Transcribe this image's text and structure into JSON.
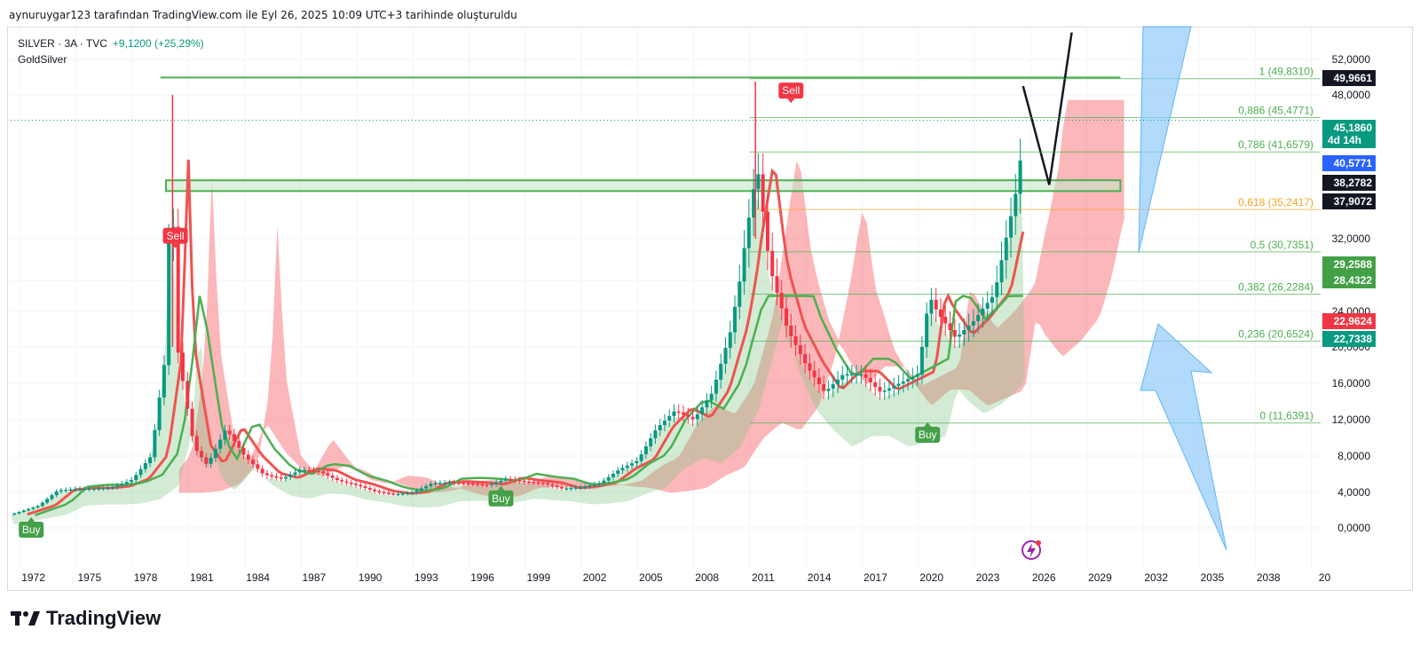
{
  "header": {
    "caption": "aynuruygar123 tarafından TradingView.com ile Eyl 26, 2025 10:09 UTC+3 tarihinde oluşturuldu",
    "symbol_line": "SILVER · 3A · TVC",
    "change": "+9,1200 (+25,29%)",
    "indicator": "GoldSilver"
  },
  "brand": {
    "name": "TradingView"
  },
  "colors": {
    "up": "#089981",
    "down": "#f23645",
    "green_line": "#4caf50",
    "red_line": "#ef5350",
    "fib": "#4caf50",
    "fib_618": "#f5a623",
    "projection": "#90caf9",
    "cloud_red": "#f77c80",
    "cloud_green": "#81c784"
  },
  "chart_data": {
    "type": "candlestick",
    "timeframe": "3A",
    "x_axis": {
      "ticks": [
        "1972",
        "1975",
        "1978",
        "1981",
        "1984",
        "1987",
        "1990",
        "1993",
        "1996",
        "1999",
        "2002",
        "2005",
        "2008",
        "2011",
        "2014",
        "2017",
        "2020",
        "2023",
        "2026",
        "2029",
        "2032",
        "2035",
        "2038",
        "20"
      ],
      "range": [
        1971.5,
        2041.5
      ]
    },
    "y_axis": {
      "ticks": [
        "0,0000",
        "4,0000",
        "8,0000",
        "12,0000",
        "16,0000",
        "20,0000",
        "24,0000",
        "28,0000",
        "32,0000",
        "48,0000",
        "52,0000"
      ],
      "range": [
        -3,
        55
      ],
      "scale": "log-like"
    },
    "price_tags": [
      {
        "label": "49,9661",
        "value": 49.9661,
        "color": "#131722"
      },
      {
        "label": "45,1860",
        "sub": "4d 14h",
        "value": 45.186,
        "color": "#089981"
      },
      {
        "label": "40,5771",
        "value": 40.5771,
        "color": "#2962ff"
      },
      {
        "label": "38,2782",
        "value": 38.2782,
        "color": "#131722"
      },
      {
        "label": "37,9072",
        "value": 37.9072,
        "color": "#131722"
      },
      {
        "label": "29,2588",
        "value": 29.2588,
        "color": "#43a047"
      },
      {
        "label": "28,4322",
        "value": 28.4322,
        "color": "#43a047"
      },
      {
        "label": "22,9624",
        "value": 22.9624,
        "color": "#f23645"
      },
      {
        "label": "22,7338",
        "value": 22.7338,
        "color": "#089981"
      }
    ],
    "fibonacci": [
      {
        "label": "1 (49,8310)",
        "value": 49.831
      },
      {
        "label": "0,886 (45,4771)",
        "value": 45.4771
      },
      {
        "label": "0,786 (41,6579)",
        "value": 41.6579
      },
      {
        "label": "0,618 (35,2417)",
        "value": 35.2417
      },
      {
        "label": "0,5 (30,7351)",
        "value": 30.7351
      },
      {
        "label": "0,382 (26,2284)",
        "value": 26.2284
      },
      {
        "label": "0,236 (20,6524)",
        "value": 20.6524
      },
      {
        "label": "0 (11,6391)",
        "value": 11.6391
      }
    ],
    "signals": [
      {
        "label": "Buy",
        "year": 1972.6,
        "price": 1.3,
        "side": "buy"
      },
      {
        "label": "Sell",
        "year": 1980.3,
        "price": 31,
        "side": "sell"
      },
      {
        "label": "Buy",
        "year": 1997.7,
        "price": 4.8,
        "side": "buy"
      },
      {
        "label": "Sell",
        "year": 2013.2,
        "price": 47,
        "side": "sell"
      },
      {
        "label": "Buy",
        "year": 2020.5,
        "price": 11.8,
        "side": "buy"
      }
    ],
    "price_path": [
      [
        1971.5,
        1.5
      ],
      [
        1973,
        2.5
      ],
      [
        1974,
        4.2
      ],
      [
        1975,
        4.4
      ],
      [
        1976,
        4.4
      ],
      [
        1977,
        4.6
      ],
      [
        1978,
        5.4
      ],
      [
        1979,
        8
      ],
      [
        1979.7,
        18
      ],
      [
        1980.1,
        40
      ],
      [
        1980.4,
        20
      ],
      [
        1980.8,
        15
      ],
      [
        1981.3,
        9
      ],
      [
        1982,
        7
      ],
      [
        1983,
        11
      ],
      [
        1984,
        8
      ],
      [
        1985,
        6
      ],
      [
        1986,
        5.5
      ],
      [
        1987,
        6.5
      ],
      [
        1988,
        6.3
      ],
      [
        1989,
        5.3
      ],
      [
        1990,
        4.8
      ],
      [
        1991,
        4.1
      ],
      [
        1992,
        3.8
      ],
      [
        1993,
        4
      ],
      [
        1994,
        5
      ],
      [
        1995,
        5.1
      ],
      [
        1996,
        5
      ],
      [
        1997,
        4.8
      ],
      [
        1998,
        5.5
      ],
      [
        1999,
        5.2
      ],
      [
        2000,
        5
      ],
      [
        2001,
        4.4
      ],
      [
        2002,
        4.6
      ],
      [
        2003,
        5
      ],
      [
        2004,
        6.5
      ],
      [
        2005,
        7.5
      ],
      [
        2006,
        11
      ],
      [
        2007,
        13
      ],
      [
        2008,
        12
      ],
      [
        2009,
        15
      ],
      [
        2010,
        22
      ],
      [
        2011,
        35
      ],
      [
        2011.4,
        40
      ],
      [
        2012,
        30
      ],
      [
        2013,
        22
      ],
      [
        2014,
        18
      ],
      [
        2015,
        15
      ],
      [
        2016,
        17
      ],
      [
        2017,
        17
      ],
      [
        2018,
        15
      ],
      [
        2019,
        16
      ],
      [
        2020,
        17
      ],
      [
        2020.6,
        26
      ],
      [
        2021,
        24
      ],
      [
        2022,
        21
      ],
      [
        2023,
        23
      ],
      [
        2024,
        26
      ],
      [
        2024.8,
        33
      ],
      [
        2025.3,
        38
      ],
      [
        2025.7,
        45.186
      ]
    ],
    "projection_path": [
      [
        2025.6,
        49
      ],
      [
        2027,
        38
      ],
      [
        2028.2,
        55
      ]
    ],
    "resistance_box": {
      "y_top": 38.5,
      "y_bottom": 37.3,
      "from": 1979.8,
      "to": 2030.8
    },
    "resistance_line": {
      "value": 49.9661,
      "from": 1979.5,
      "to": 2030.8
    }
  },
  "watermark_icon": "lightning-icon"
}
